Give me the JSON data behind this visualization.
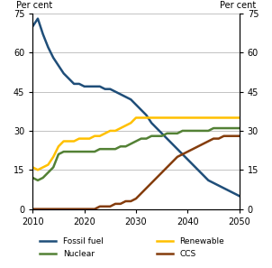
{
  "fossil_fuel": {
    "x": [
      2010,
      2011,
      2012,
      2013,
      2014,
      2015,
      2016,
      2017,
      2018,
      2019,
      2020,
      2021,
      2022,
      2023,
      2024,
      2025,
      2026,
      2027,
      2028,
      2029,
      2030,
      2031,
      2032,
      2033,
      2034,
      2035,
      2036,
      2037,
      2038,
      2039,
      2040,
      2041,
      2042,
      2043,
      2044,
      2045,
      2046,
      2047,
      2048,
      2049,
      2050
    ],
    "y": [
      70,
      73,
      67,
      62,
      58,
      55,
      52,
      50,
      48,
      48,
      47,
      47,
      47,
      47,
      46,
      46,
      45,
      44,
      43,
      42,
      40,
      38,
      36,
      33,
      31,
      29,
      27,
      25,
      23,
      21,
      19,
      17,
      15,
      13,
      11,
      10,
      9,
      8,
      7,
      6,
      5
    ],
    "color": "#1F4E79"
  },
  "nuclear": {
    "x": [
      2010,
      2011,
      2012,
      2013,
      2014,
      2015,
      2016,
      2017,
      2018,
      2019,
      2020,
      2021,
      2022,
      2023,
      2024,
      2025,
      2026,
      2027,
      2028,
      2029,
      2030,
      2031,
      2032,
      2033,
      2034,
      2035,
      2036,
      2037,
      2038,
      2039,
      2040,
      2041,
      2042,
      2043,
      2044,
      2045,
      2046,
      2047,
      2048,
      2049,
      2050
    ],
    "y": [
      12,
      11,
      12,
      14,
      16,
      21,
      22,
      22,
      22,
      22,
      22,
      22,
      22,
      23,
      23,
      23,
      23,
      24,
      24,
      25,
      26,
      27,
      27,
      28,
      28,
      28,
      29,
      29,
      29,
      30,
      30,
      30,
      30,
      30,
      30,
      31,
      31,
      31,
      31,
      31,
      31
    ],
    "color": "#538135"
  },
  "renewable": {
    "x": [
      2010,
      2011,
      2012,
      2013,
      2014,
      2015,
      2016,
      2017,
      2018,
      2019,
      2020,
      2021,
      2022,
      2023,
      2024,
      2025,
      2026,
      2027,
      2028,
      2029,
      2030,
      2031,
      2032,
      2033,
      2034,
      2035,
      2036,
      2037,
      2038,
      2039,
      2040,
      2041,
      2042,
      2043,
      2044,
      2045,
      2046,
      2047,
      2048,
      2049,
      2050
    ],
    "y": [
      16,
      15,
      16,
      17,
      20,
      24,
      26,
      26,
      26,
      27,
      27,
      27,
      28,
      28,
      29,
      30,
      30,
      31,
      32,
      33,
      35,
      35,
      35,
      35,
      35,
      35,
      35,
      35,
      35,
      35,
      35,
      35,
      35,
      35,
      35,
      35,
      35,
      35,
      35,
      35,
      35
    ],
    "color": "#FFC000"
  },
  "ccs": {
    "x": [
      2010,
      2011,
      2012,
      2013,
      2014,
      2015,
      2016,
      2017,
      2018,
      2019,
      2020,
      2021,
      2022,
      2023,
      2024,
      2025,
      2026,
      2027,
      2028,
      2029,
      2030,
      2031,
      2032,
      2033,
      2034,
      2035,
      2036,
      2037,
      2038,
      2039,
      2040,
      2041,
      2042,
      2043,
      2044,
      2045,
      2046,
      2047,
      2048,
      2049,
      2050
    ],
    "y": [
      0,
      0,
      0,
      0,
      0,
      0,
      0,
      0,
      0,
      0,
      0,
      0,
      0,
      1,
      1,
      1,
      2,
      2,
      3,
      3,
      4,
      6,
      8,
      10,
      12,
      14,
      16,
      18,
      20,
      21,
      22,
      23,
      24,
      25,
      26,
      27,
      27,
      28,
      28,
      28,
      28
    ],
    "color": "#843C0C"
  },
  "ylim": [
    0,
    75
  ],
  "yticks": [
    0,
    15,
    30,
    45,
    60,
    75
  ],
  "xlim": [
    2010,
    2050
  ],
  "xticks": [
    2010,
    2020,
    2030,
    2040,
    2050
  ],
  "ylabel_left": "Per cent",
  "ylabel_right": "Per cent",
  "legend": [
    {
      "label": "Fossil fuel",
      "color": "#1F4E79"
    },
    {
      "label": "Nuclear",
      "color": "#538135"
    },
    {
      "label": "Renewable",
      "color": "#FFC000"
    },
    {
      "label": "CCS",
      "color": "#843C0C"
    }
  ]
}
